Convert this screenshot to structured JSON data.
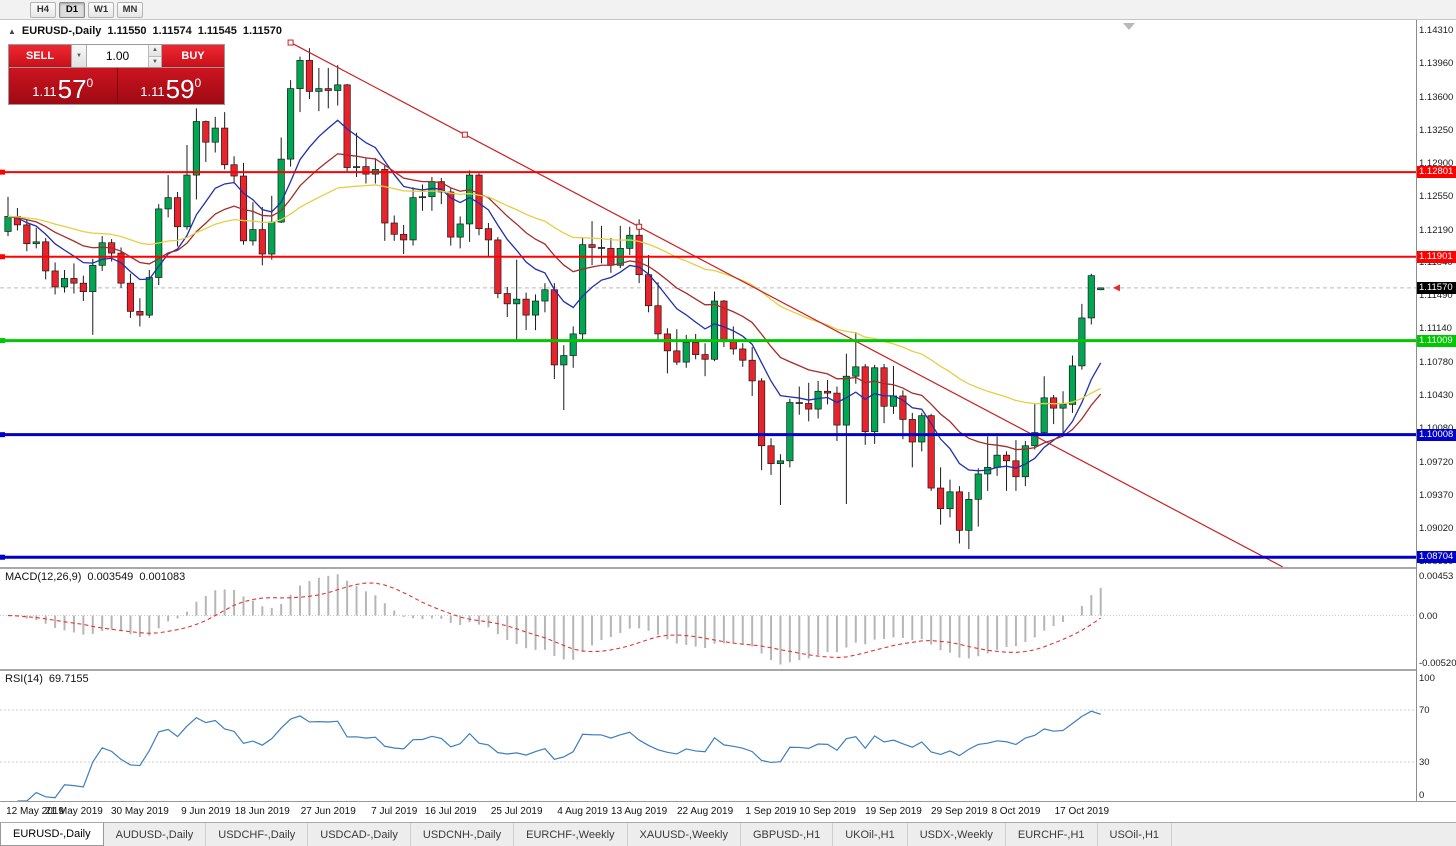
{
  "window": {
    "timeframe_buttons": [
      {
        "label": "H4",
        "active": false
      },
      {
        "label": "D1",
        "active": true
      },
      {
        "label": "W1",
        "active": false
      },
      {
        "label": "MN",
        "active": false
      }
    ]
  },
  "icons": {
    "collapse": "▲",
    "dropdown_arrow": "▼",
    "spin_up": "▲",
    "spin_down": "▼"
  },
  "chart_header": {
    "symbol_period": "EURUSD-,Daily",
    "open": "1.11550",
    "high": "1.11574",
    "low": "1.11545",
    "close": "1.11570"
  },
  "one_click": {
    "sell_label": "SELL",
    "buy_label": "BUY",
    "volume": "1.00",
    "sell_price": {
      "big": "1.11",
      "pips": "57",
      "pipette": "0"
    },
    "buy_price": {
      "big": "1.11",
      "pips": "59",
      "pipette": "0"
    }
  },
  "price_scale": {
    "ticks": [
      "1.14310",
      "1.13960",
      "1.13600",
      "1.13250",
      "1.12900",
      "1.12550",
      "1.12190",
      "1.11840",
      "1.11490",
      "1.11140",
      "1.10780",
      "1.10430",
      "1.10080",
      "1.09720",
      "1.09370",
      "1.09020",
      "1.08660"
    ]
  },
  "chart_data": {
    "type": "candlestick",
    "symbol": "EURUSD-",
    "period": "Daily",
    "price_range": {
      "min": 1.086,
      "max": 1.1442
    },
    "colors": {
      "up": "#00a651",
      "down": "#e8232b",
      "ma_fast": "#1f2fae",
      "ma_mid": "#a62b2b",
      "ma_slow": "#e4cf44",
      "trend": "#cc2020",
      "macd_hist": "#b6b6b6",
      "macd_signal": "#e03535",
      "rsi": "#3c7ebf"
    },
    "ohlc": [
      [
        1.1217,
        1.1254,
        1.1212,
        1.1233
      ],
      [
        1.1233,
        1.1242,
        1.1218,
        1.1224
      ],
      [
        1.1224,
        1.123,
        1.1196,
        1.1204
      ],
      [
        1.1204,
        1.1221,
        1.1199,
        1.1206
      ],
      [
        1.1206,
        1.121,
        1.1166,
        1.1175
      ],
      [
        1.1175,
        1.1184,
        1.115,
        1.1158
      ],
      [
        1.1158,
        1.1176,
        1.1152,
        1.1167
      ],
      [
        1.1167,
        1.1183,
        1.1151,
        1.1162
      ],
      [
        1.1162,
        1.117,
        1.1143,
        1.1153
      ],
      [
        1.1153,
        1.1188,
        1.1107,
        1.1181
      ],
      [
        1.1181,
        1.1212,
        1.1175,
        1.1205
      ],
      [
        1.1205,
        1.1209,
        1.1185,
        1.1194
      ],
      [
        1.1194,
        1.12,
        1.1157,
        1.1162
      ],
      [
        1.1162,
        1.1172,
        1.1125,
        1.1132
      ],
      [
        1.1132,
        1.1146,
        1.1116,
        1.1128
      ],
      [
        1.1128,
        1.1176,
        1.1125,
        1.1168
      ],
      [
        1.1168,
        1.1246,
        1.116,
        1.1241
      ],
      [
        1.1241,
        1.1277,
        1.1232,
        1.1253
      ],
      [
        1.1253,
        1.1259,
        1.1201,
        1.1222
      ],
      [
        1.1222,
        1.1309,
        1.1219,
        1.1277
      ],
      [
        1.1277,
        1.1348,
        1.1251,
        1.1334
      ],
      [
        1.1334,
        1.1335,
        1.1291,
        1.1312
      ],
      [
        1.1312,
        1.1339,
        1.1301,
        1.1327
      ],
      [
        1.1327,
        1.1344,
        1.1283,
        1.1288
      ],
      [
        1.1288,
        1.1297,
        1.1268,
        1.1276
      ],
      [
        1.1276,
        1.129,
        1.1203,
        1.1207
      ],
      [
        1.1207,
        1.1248,
        1.1202,
        1.1219
      ],
      [
        1.1219,
        1.1243,
        1.1181,
        1.1193
      ],
      [
        1.1193,
        1.1255,
        1.1187,
        1.1227
      ],
      [
        1.1227,
        1.1317,
        1.1226,
        1.1294
      ],
      [
        1.1294,
        1.1378,
        1.1286,
        1.1369
      ],
      [
        1.1369,
        1.1403,
        1.1344,
        1.1399
      ],
      [
        1.1399,
        1.1412,
        1.1358,
        1.1366
      ],
      [
        1.1366,
        1.1391,
        1.1345,
        1.1369
      ],
      [
        1.1369,
        1.1391,
        1.1348,
        1.1367
      ],
      [
        1.1367,
        1.1394,
        1.1351,
        1.1373
      ],
      [
        1.1373,
        1.1374,
        1.1281,
        1.1285
      ],
      [
        1.1285,
        1.1322,
        1.1275,
        1.1286
      ],
      [
        1.1286,
        1.1295,
        1.1268,
        1.1278
      ],
      [
        1.1278,
        1.1295,
        1.1268,
        1.1283
      ],
      [
        1.1283,
        1.1288,
        1.1207,
        1.1226
      ],
      [
        1.1226,
        1.1234,
        1.1207,
        1.1214
      ],
      [
        1.1214,
        1.1224,
        1.1193,
        1.1208
      ],
      [
        1.1208,
        1.1264,
        1.1202,
        1.1253
      ],
      [
        1.1253,
        1.1267,
        1.1239,
        1.1254
      ],
      [
        1.1254,
        1.1275,
        1.1239,
        1.127
      ],
      [
        1.127,
        1.1274,
        1.1246,
        1.1259
      ],
      [
        1.1259,
        1.1263,
        1.1202,
        1.1211
      ],
      [
        1.1211,
        1.1233,
        1.1199,
        1.1225
      ],
      [
        1.1225,
        1.1282,
        1.1206,
        1.1277
      ],
      [
        1.1277,
        1.1279,
        1.1213,
        1.122
      ],
      [
        1.122,
        1.1226,
        1.1191,
        1.1208
      ],
      [
        1.1208,
        1.1211,
        1.1146,
        1.1151
      ],
      [
        1.1151,
        1.1158,
        1.1126,
        1.114
      ],
      [
        1.114,
        1.1187,
        1.1101,
        1.1145
      ],
      [
        1.1145,
        1.1152,
        1.1112,
        1.1128
      ],
      [
        1.1128,
        1.115,
        1.1112,
        1.1143
      ],
      [
        1.1143,
        1.1162,
        1.1131,
        1.1155
      ],
      [
        1.1155,
        1.1162,
        1.106,
        1.1075
      ],
      [
        1.1075,
        1.1096,
        1.1027,
        1.1085
      ],
      [
        1.1085,
        1.1116,
        1.1072,
        1.1108
      ],
      [
        1.1108,
        1.1211,
        1.1102,
        1.1203
      ],
      [
        1.1203,
        1.1228,
        1.1181,
        1.12
      ],
      [
        1.12,
        1.1223,
        1.1183,
        1.1199
      ],
      [
        1.1199,
        1.121,
        1.1173,
        1.1181
      ],
      [
        1.1181,
        1.1223,
        1.1178,
        1.1199
      ],
      [
        1.1199,
        1.1222,
        1.1192,
        1.1213
      ],
      [
        1.1213,
        1.123,
        1.1162,
        1.1171
      ],
      [
        1.1171,
        1.1192,
        1.1131,
        1.1138
      ],
      [
        1.1138,
        1.1163,
        1.1102,
        1.1108
      ],
      [
        1.1108,
        1.1114,
        1.1066,
        1.109
      ],
      [
        1.109,
        1.1113,
        1.1075,
        1.1078
      ],
      [
        1.1078,
        1.1107,
        1.1072,
        1.1099
      ],
      [
        1.1099,
        1.1108,
        1.1081,
        1.1086
      ],
      [
        1.1086,
        1.1098,
        1.1063,
        1.1081
      ],
      [
        1.1081,
        1.1153,
        1.1079,
        1.1143
      ],
      [
        1.1143,
        1.1144,
        1.1094,
        1.1101
      ],
      [
        1.1101,
        1.1116,
        1.1086,
        1.1092
      ],
      [
        1.1092,
        1.1098,
        1.1073,
        1.108
      ],
      [
        1.108,
        1.1094,
        1.1042,
        1.1058
      ],
      [
        1.1058,
        1.1061,
        1.0963,
        1.0989
      ],
      [
        1.0989,
        1.0997,
        1.0958,
        1.097
      ],
      [
        1.097,
        1.098,
        1.0926,
        1.0973
      ],
      [
        1.0973,
        1.1039,
        1.0966,
        1.1035
      ],
      [
        1.1035,
        1.1052,
        1.1022,
        1.1034
      ],
      [
        1.1034,
        1.1056,
        1.1015,
        1.1028
      ],
      [
        1.1028,
        1.1058,
        1.1018,
        1.1047
      ],
      [
        1.1047,
        1.1059,
        1.1033,
        1.1045
      ],
      [
        1.1045,
        1.1052,
        1.0994,
        1.1011
      ],
      [
        1.1011,
        1.1087,
        1.0927,
        1.1063
      ],
      [
        1.1063,
        1.111,
        1.1055,
        1.1073
      ],
      [
        1.1073,
        1.1076,
        1.099,
        1.1004
      ],
      [
        1.1004,
        1.1075,
        1.0991,
        1.1072
      ],
      [
        1.1072,
        1.1076,
        1.1013,
        1.1031
      ],
      [
        1.1031,
        1.1074,
        1.1023,
        1.1042
      ],
      [
        1.1042,
        1.1048,
        1.0996,
        1.1017
      ],
      [
        1.1017,
        1.1024,
        1.0966,
        1.0993
      ],
      [
        1.0993,
        1.1024,
        1.0983,
        1.1021
      ],
      [
        1.1021,
        1.1023,
        1.0941,
        1.0944
      ],
      [
        1.0944,
        1.0966,
        1.0905,
        1.0922
      ],
      [
        1.0922,
        1.0953,
        1.0913,
        1.094
      ],
      [
        1.094,
        1.0946,
        1.0885,
        1.0899
      ],
      [
        1.0899,
        1.094,
        1.0879,
        1.0932
      ],
      [
        1.0932,
        1.0965,
        1.0903,
        1.0959
      ],
      [
        1.0959,
        1.0999,
        1.0941,
        1.0966
      ],
      [
        1.0966,
        1.0999,
        1.0957,
        1.0979
      ],
      [
        1.0979,
        1.0983,
        1.0941,
        1.0973
      ],
      [
        1.0973,
        1.0995,
        1.0941,
        1.0956
      ],
      [
        1.0956,
        1.0994,
        1.0946,
        1.0989
      ],
      [
        1.0989,
        1.1034,
        1.0985,
        1.1003
      ],
      [
        1.1003,
        1.1063,
        1.1001,
        1.104
      ],
      [
        1.104,
        1.1043,
        1.1012,
        1.1029
      ],
      [
        1.1029,
        1.1047,
        1.1001,
        1.1033
      ],
      [
        1.1033,
        1.1085,
        1.1024,
        1.1074
      ],
      [
        1.1074,
        1.114,
        1.107,
        1.1125
      ],
      [
        1.1125,
        1.1172,
        1.1118,
        1.117
      ],
      [
        1.1155,
        1.11574,
        1.11545,
        1.1157
      ]
    ],
    "time_labels": [
      {
        "text": "12 May 2019",
        "bar": 1
      },
      {
        "text": "21 May 2019",
        "bar": 7
      },
      {
        "text": "30 May 2019",
        "bar": 14
      },
      {
        "text": "9 Jun 2019",
        "bar": 21
      },
      {
        "text": "18 Jun 2019",
        "bar": 27
      },
      {
        "text": "27 Jun 2019",
        "bar": 34
      },
      {
        "text": "7 Jul 2019",
        "bar": 41
      },
      {
        "text": "16 Jul 2019",
        "bar": 47
      },
      {
        "text": "25 Jul 2019",
        "bar": 54
      },
      {
        "text": "4 Aug 2019",
        "bar": 61
      },
      {
        "text": "13 Aug 2019",
        "bar": 67
      },
      {
        "text": "22 Aug 2019",
        "bar": 74
      },
      {
        "text": "1 Sep 2019",
        "bar": 81
      },
      {
        "text": "10 Sep 2019",
        "bar": 87
      },
      {
        "text": "19 Sep 2019",
        "bar": 94
      },
      {
        "text": "29 Sep 2019",
        "bar": 101
      },
      {
        "text": "8 Oct 2019",
        "bar": 107
      },
      {
        "text": "17 Oct 2019",
        "bar": 114
      }
    ],
    "horizontal_lines": [
      {
        "price": 1.12801,
        "label": "1.12801",
        "color": "#ff0000",
        "width": 2
      },
      {
        "price": 1.11901,
        "label": "1.11901",
        "color": "#ff0000",
        "width": 2
      },
      {
        "price": 1.11009,
        "label": "1.11009",
        "color": "#00c800",
        "width": 3
      },
      {
        "price": 1.10008,
        "label": "1.10008",
        "color": "#0000c8",
        "width": 3
      },
      {
        "price": 1.08704,
        "label": "1.08704",
        "color": "#0000c8",
        "width": 3
      }
    ],
    "trendline": {
      "anchor1": {
        "bar": 30,
        "price": 1.1418
      },
      "anchor2": {
        "bar": 67,
        "price": 1.1222
      },
      "ray": true
    },
    "bid_line": {
      "price": 1.1157,
      "label": "1.11570"
    },
    "macd": {
      "title": "MACD(12,26,9)",
      "main_value": "0.003549",
      "signal_value": "0.001083",
      "scale": [
        "0.00453",
        "0.00",
        "-0.00520"
      ]
    },
    "rsi": {
      "title": "RSI(14)",
      "value": "69.7155",
      "scale": [
        "100",
        "70",
        "30",
        "0"
      ]
    }
  },
  "tabs": [
    {
      "label": "EURUSD-,Daily",
      "active": true
    },
    {
      "label": "AUDUSD-,Daily",
      "active": false
    },
    {
      "label": "USDCHF-,Daily",
      "active": false
    },
    {
      "label": "USDCAD-,Daily",
      "active": false
    },
    {
      "label": "USDCNH-,Daily",
      "active": false
    },
    {
      "label": "EURCHF-,Weekly",
      "active": false
    },
    {
      "label": "XAUUSD-,Weekly",
      "active": false
    },
    {
      "label": "GBPUSD-,H1",
      "active": false
    },
    {
      "label": "UKOil-,H1",
      "active": false
    },
    {
      "label": "USDX-,Weekly",
      "active": false
    },
    {
      "label": "EURCHF-,H1",
      "active": false
    },
    {
      "label": "USOil-,H1",
      "active": false
    }
  ]
}
